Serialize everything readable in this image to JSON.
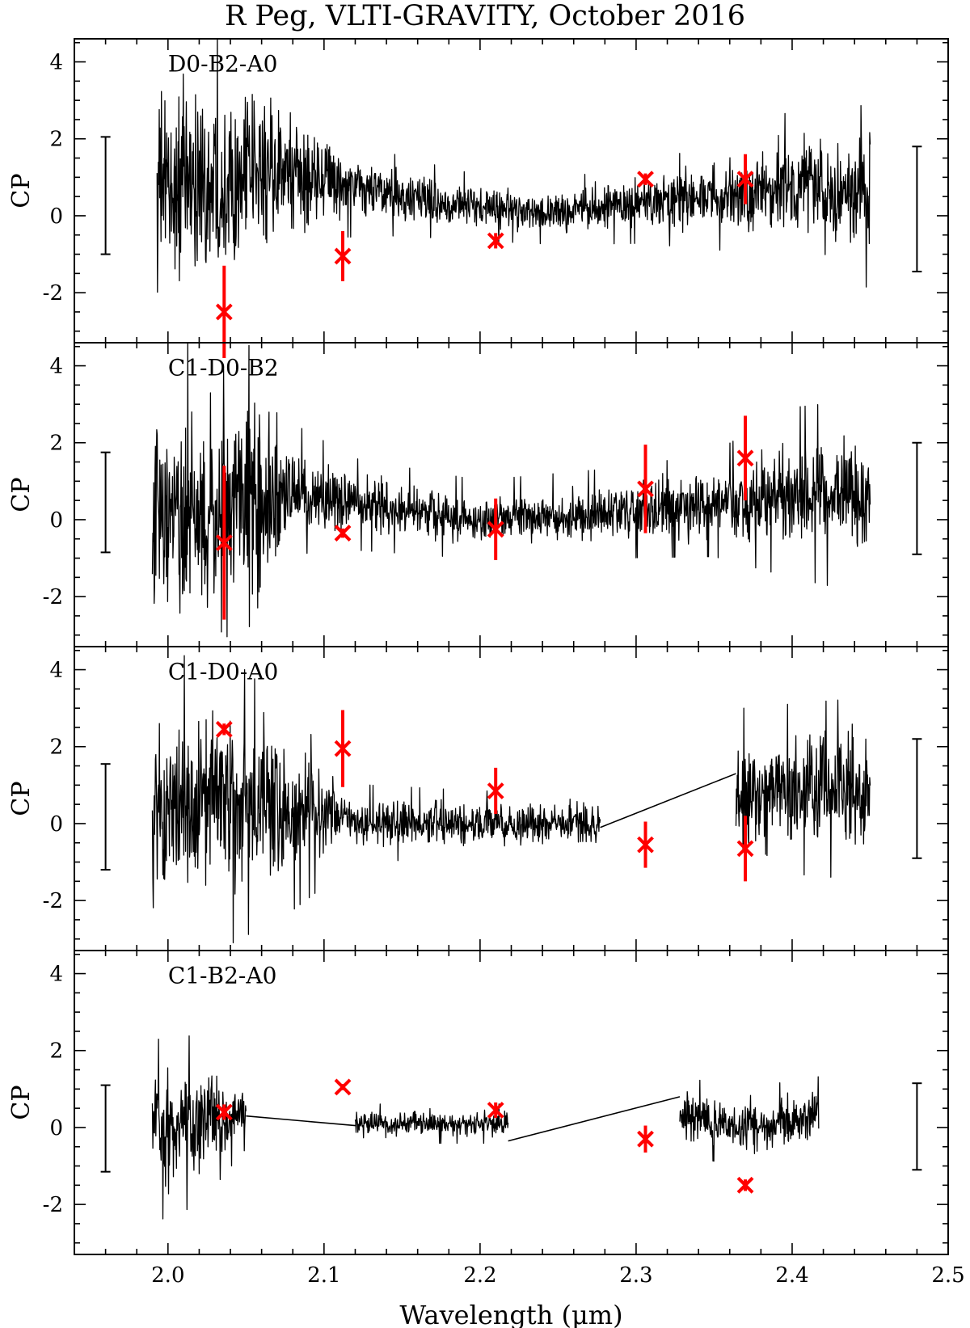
{
  "figure_title": "R Peg, VLTI-GRAVITY, October 2016",
  "colors": {
    "spectrum": "#000000",
    "model": "#ff0000",
    "frame": "#000000"
  },
  "chart_data": [
    {
      "type": "line",
      "panel_label": "D0-B2-A0",
      "ylabel": "CP",
      "xlim": [
        1.94,
        2.5
      ],
      "ylim": [
        -3.3,
        4.6
      ],
      "yticks": [
        4,
        2,
        0,
        -2
      ],
      "ytick_labels": [
        "4",
        "2",
        "0",
        "-2"
      ],
      "segments": [
        [
          1.993,
          2.45
        ]
      ],
      "spectrum_profile": {
        "x": [
          1.993,
          2.03,
          2.07,
          2.11,
          2.15,
          2.2,
          2.25,
          2.3,
          2.35,
          2.4,
          2.45
        ],
        "mean": [
          0.7,
          0.9,
          1.2,
          0.8,
          0.5,
          0.2,
          0.1,
          0.3,
          0.5,
          0.7,
          0.5
        ],
        "amp": [
          2.4,
          2.3,
          1.8,
          0.8,
          0.6,
          0.5,
          0.5,
          0.6,
          0.8,
          1.2,
          1.4
        ]
      },
      "model_points": [
        {
          "x": 2.036,
          "y": -2.5,
          "err": 1.2
        },
        {
          "x": 2.112,
          "y": -1.05,
          "err": 0.65
        },
        {
          "x": 2.21,
          "y": -0.65,
          "err": 0.2
        },
        {
          "x": 2.306,
          "y": 0.95,
          "err": 0.15
        },
        {
          "x": 2.37,
          "y": 0.95,
          "err": 0.65
        }
      ],
      "left_errorbar": {
        "x": 1.96,
        "low": -1.0,
        "high": 2.05
      },
      "right_errorbar": {
        "x": 2.48,
        "low": -1.45,
        "high": 1.8
      }
    },
    {
      "type": "line",
      "panel_label": "C1-D0-B2",
      "ylabel": "CP",
      "xlim": [
        1.94,
        2.5
      ],
      "ylim": [
        -3.3,
        4.6
      ],
      "yticks": [
        4,
        2,
        0,
        -2
      ],
      "ytick_labels": [
        "4",
        "2",
        "0",
        "-2"
      ],
      "segments": [
        [
          1.99,
          2.45
        ]
      ],
      "spectrum_profile": {
        "x": [
          1.99,
          2.03,
          2.066,
          2.08,
          2.12,
          2.2,
          2.3,
          2.35,
          2.4,
          2.45
        ],
        "mean": [
          0.2,
          0.0,
          0.3,
          0.8,
          0.4,
          0.0,
          0.2,
          0.4,
          0.7,
          0.6
        ],
        "amp": [
          2.6,
          2.8,
          2.4,
          1.0,
          0.7,
          0.6,
          0.7,
          0.8,
          1.3,
          1.5
        ]
      },
      "model_points": [
        {
          "x": 2.036,
          "y": -0.6,
          "err": 2.0
        },
        {
          "x": 2.112,
          "y": -0.35,
          "err": 0.12
        },
        {
          "x": 2.21,
          "y": -0.25,
          "err": 0.8
        },
        {
          "x": 2.306,
          "y": 0.8,
          "err": 1.15
        },
        {
          "x": 2.37,
          "y": 1.6,
          "err": 1.1
        }
      ],
      "left_errorbar": {
        "x": 1.96,
        "low": -0.85,
        "high": 1.75
      },
      "right_errorbar": {
        "x": 2.48,
        "low": -0.9,
        "high": 2.0
      }
    },
    {
      "type": "line",
      "panel_label": "C1-D0-A0",
      "ylabel": "CP",
      "xlim": [
        1.94,
        2.5
      ],
      "ylim": [
        -3.3,
        4.6
      ],
      "yticks": [
        4,
        2,
        0,
        -2
      ],
      "ytick_labels": [
        "4",
        "2",
        "0",
        "-2"
      ],
      "segments": [
        [
          1.99,
          2.277
        ],
        [
          2.364,
          2.45
        ]
      ],
      "connectors": [
        {
          "from": [
            2.277,
            -0.1
          ],
          "to": [
            2.364,
            1.3
          ]
        }
      ],
      "spectrum_profile": {
        "x": [
          1.99,
          2.04,
          2.08,
          2.12,
          2.2,
          2.277,
          2.364,
          2.4,
          2.45
        ],
        "mean": [
          0.3,
          0.6,
          0.3,
          0.0,
          0.0,
          0.0,
          0.6,
          0.9,
          0.9
        ],
        "amp": [
          2.4,
          2.2,
          1.5,
          0.6,
          0.5,
          0.5,
          1.4,
          1.3,
          1.4
        ]
      },
      "model_points": [
        {
          "x": 2.036,
          "y": 2.45,
          "err": 0.15
        },
        {
          "x": 2.112,
          "y": 1.95,
          "err": 1.0
        },
        {
          "x": 2.21,
          "y": 0.85,
          "err": 0.6
        },
        {
          "x": 2.306,
          "y": -0.55,
          "err": 0.6
        },
        {
          "x": 2.37,
          "y": -0.65,
          "err": 0.85
        }
      ],
      "left_errorbar": {
        "x": 1.96,
        "low": -1.2,
        "high": 1.55
      },
      "right_errorbar": {
        "x": 2.48,
        "low": -0.9,
        "high": 2.2
      }
    },
    {
      "type": "line",
      "panel_label": "C1-B2-A0",
      "ylabel": "CP",
      "xlabel": "Wavelength (μm)",
      "xlim": [
        1.94,
        2.5
      ],
      "ylim": [
        -3.3,
        4.6
      ],
      "yticks": [
        4,
        2,
        0,
        -2
      ],
      "ytick_labels": [
        "4",
        "2",
        "0",
        "-2"
      ],
      "xticks": [
        2.0,
        2.1,
        2.2,
        2.3,
        2.4,
        2.5
      ],
      "xtick_labels": [
        "2.0",
        "2.1",
        "2.2",
        "2.3",
        "2.4",
        "2.5"
      ],
      "segments": [
        [
          1.99,
          2.05
        ],
        [
          2.12,
          2.218
        ],
        [
          2.328,
          2.417
        ]
      ],
      "connectors": [
        {
          "from": [
            2.05,
            0.3
          ],
          "to": [
            2.12,
            0.05
          ]
        },
        {
          "from": [
            2.218,
            -0.35
          ],
          "to": [
            2.328,
            0.8
          ]
        }
      ],
      "spectrum_profile": {
        "x": [
          1.99,
          2.02,
          2.05,
          2.12,
          2.218,
          2.328,
          2.37,
          2.417
        ],
        "mean": [
          -0.1,
          0.2,
          0.3,
          0.1,
          0.1,
          0.3,
          0.0,
          0.3
        ],
        "amp": [
          1.4,
          1.3,
          0.5,
          0.3,
          0.3,
          0.6,
          0.6,
          0.6
        ]
      },
      "model_points": [
        {
          "x": 2.036,
          "y": 0.4,
          "err": 0.2
        },
        {
          "x": 2.112,
          "y": 1.05,
          "err": 0.08
        },
        {
          "x": 2.21,
          "y": 0.45,
          "err": 0.2
        },
        {
          "x": 2.306,
          "y": -0.3,
          "err": 0.35
        },
        {
          "x": 2.37,
          "y": -1.5,
          "err": 0.15
        }
      ],
      "left_errorbar": {
        "x": 1.96,
        "low": -1.15,
        "high": 1.1
      },
      "right_errorbar": {
        "x": 2.48,
        "low": -1.1,
        "high": 1.15
      }
    }
  ]
}
